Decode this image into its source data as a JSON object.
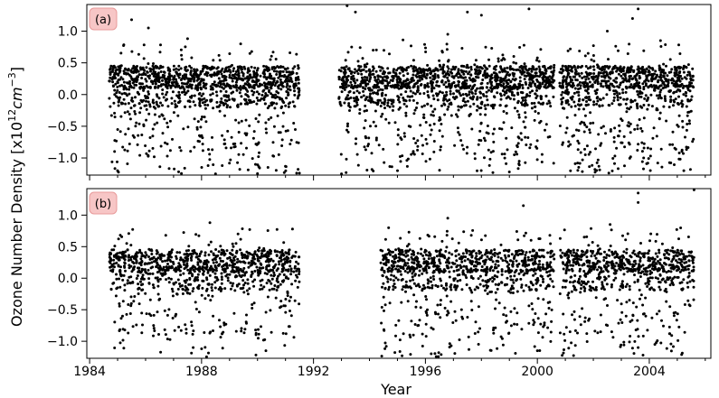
{
  "chart_data": {
    "type": "scatter",
    "ylabel": "Ozone Number Density [x10",
    "ylabel_exp": "12",
    "ylabel_unit": "cm",
    "ylabel_unit_exp": "−3",
    "ylabel_close": "]",
    "xlabel": "Year",
    "xlim": [
      1983.9,
      2006.2
    ],
    "x_ticks": [
      1984,
      1988,
      1992,
      1996,
      2000,
      2004
    ],
    "x_minor_step": 1,
    "point_color": "#000000",
    "badge_fill": "#f7c6c6",
    "badge_stroke": "#e89a9a",
    "panels": [
      {
        "label": "(a)",
        "ylim": [
          -1.27,
          1.42
        ],
        "y_ticks": [
          -1.0,
          -0.5,
          0.0,
          0.5,
          1.0
        ],
        "segments": [
          [
            1984.7,
            1991.5
          ],
          [
            1992.9,
            2000.6
          ],
          [
            2000.8,
            2005.6
          ]
        ],
        "seed": 7,
        "density": 180,
        "outliers": [
          [
            1985.5,
            1.18
          ],
          [
            1986.1,
            1.05
          ],
          [
            1987.5,
            0.88
          ],
          [
            1993.2,
            1.4
          ],
          [
            1993.5,
            1.3
          ],
          [
            1995.2,
            0.86
          ],
          [
            1996.8,
            0.95
          ],
          [
            1997.5,
            1.3
          ],
          [
            1998.0,
            1.25
          ],
          [
            1999.7,
            1.35
          ],
          [
            2002.5,
            1.0
          ],
          [
            2003.4,
            1.2
          ],
          [
            2003.6,
            1.35
          ],
          [
            2004.4,
            0.85
          ],
          [
            1985.0,
            -1.2
          ],
          [
            1988.5,
            -1.25
          ],
          [
            1993.0,
            -1.25
          ],
          [
            1995.0,
            -1.2
          ],
          [
            1999.0,
            -1.22
          ],
          [
            2003.8,
            -1.0
          ]
        ]
      },
      {
        "label": "(b)",
        "ylim": [
          -1.27,
          1.42
        ],
        "y_ticks": [
          -1.0,
          -0.5,
          0.0,
          0.5,
          1.0
        ],
        "segments": [
          [
            1984.7,
            1991.5
          ],
          [
            1994.4,
            2000.6
          ],
          [
            2000.8,
            2005.6
          ]
        ],
        "seed": 23,
        "density": 150,
        "outliers": [
          [
            1988.3,
            0.88
          ],
          [
            1996.8,
            0.95
          ],
          [
            1999.5,
            1.15
          ],
          [
            2002.6,
            0.85
          ],
          [
            2003.6,
            1.35
          ],
          [
            2003.6,
            1.2
          ],
          [
            2005.6,
            1.4
          ],
          [
            1987.7,
            -1.1
          ],
          [
            1988.0,
            -1.12
          ],
          [
            1990.3,
            -1.15
          ],
          [
            1994.6,
            -1.08
          ],
          [
            2000.0,
            -1.15
          ],
          [
            2004.2,
            -1.05
          ],
          [
            2003.6,
            -1.1
          ]
        ]
      }
    ]
  }
}
